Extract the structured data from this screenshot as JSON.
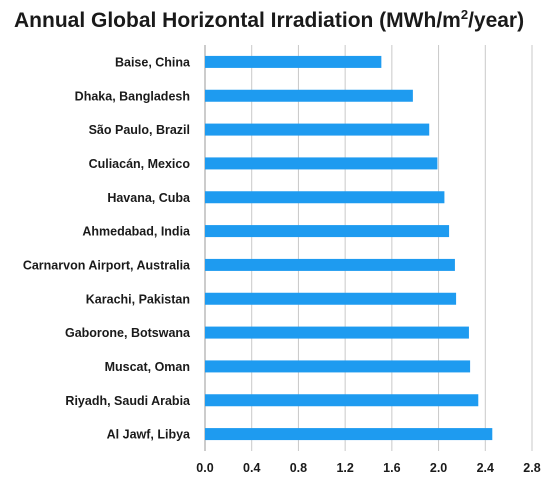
{
  "chart_data": {
    "type": "bar",
    "orientation": "horizontal",
    "title": "Annual Global Horizontal Irradiation (MWh/m2/year)",
    "title_parts": {
      "main": "Annual Global Horizontal Irradiation (MWh/m",
      "sup": "2",
      "tail": "/year)"
    },
    "xlabel": "",
    "ylabel": "",
    "categories": [
      "Baise, China",
      "Dhaka, Bangladesh",
      "São Paulo, Brazil",
      "Culiacán, Mexico",
      "Havana, Cuba",
      "Ahmedabad, India",
      "Carnarvon Airport, Australia",
      "Karachi, Pakistan",
      "Gaborone, Botswana",
      "Muscat, Oman",
      "Riyadh, Saudi Arabia",
      "Al Jawf, Libya"
    ],
    "values": [
      1.51,
      1.78,
      1.92,
      1.99,
      2.05,
      2.09,
      2.14,
      2.15,
      2.26,
      2.27,
      2.34,
      2.46
    ],
    "xlim": [
      0,
      2.8
    ],
    "xticks": [
      "0.0",
      "0.4",
      "0.8",
      "1.2",
      "1.6",
      "2.0",
      "2.4",
      "2.8"
    ],
    "grid": "vertical",
    "bar_color": "#1e9bf0",
    "legend": "none"
  }
}
